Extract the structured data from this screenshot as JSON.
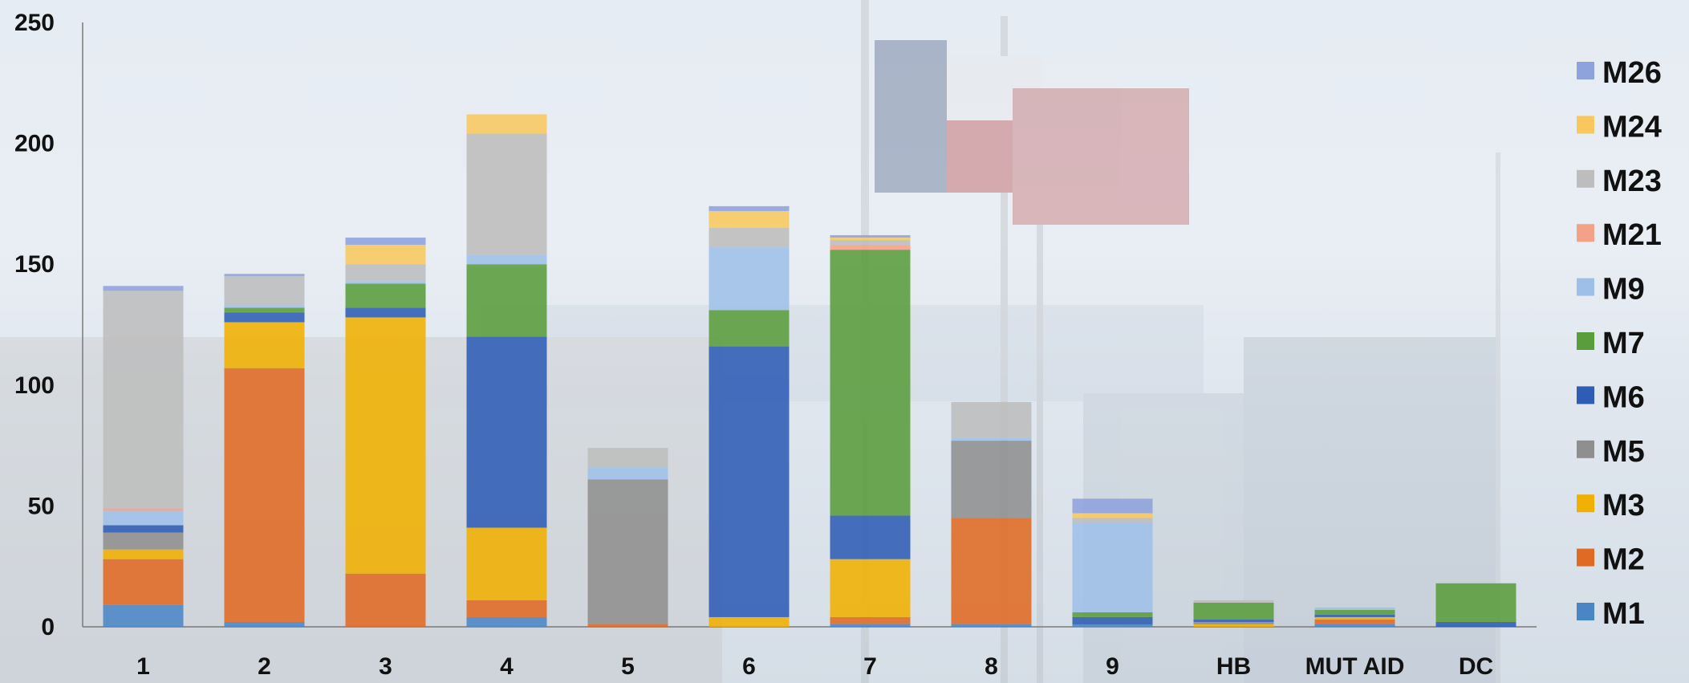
{
  "chart_data": {
    "type": "bar",
    "stacked": true,
    "title": "",
    "xlabel": "",
    "ylabel": "",
    "ylim": [
      0,
      250
    ],
    "yticks": [
      0,
      50,
      100,
      150,
      200,
      250
    ],
    "grid": false,
    "legend_position": "right",
    "categories": [
      "1",
      "2",
      "3",
      "4",
      "5",
      "6",
      "7",
      "8",
      "9",
      "HB",
      "MUT AID",
      "DC"
    ],
    "series": [
      {
        "name": "M1",
        "color": "#4a86c5",
        "values": [
          9,
          2,
          0,
          4,
          0,
          0,
          1,
          1,
          1,
          0,
          1,
          0
        ]
      },
      {
        "name": "M2",
        "color": "#e06a23",
        "values": [
          19,
          105,
          22,
          7,
          1,
          0,
          3,
          44,
          0,
          0,
          2,
          0
        ]
      },
      {
        "name": "M3",
        "color": "#f0b000",
        "values": [
          4,
          19,
          106,
          30,
          0,
          4,
          24,
          0,
          0,
          1,
          1,
          0
        ]
      },
      {
        "name": "M5",
        "color": "#8f8f8f",
        "values": [
          7,
          0,
          0,
          0,
          60,
          0,
          0,
          32,
          0,
          1,
          0,
          0
        ]
      },
      {
        "name": "M6",
        "color": "#2f5cb5",
        "values": [
          3,
          4,
          4,
          79,
          0,
          112,
          18,
          0,
          3,
          1,
          1,
          2
        ]
      },
      {
        "name": "M7",
        "color": "#5a9d3c",
        "values": [
          0,
          2,
          10,
          30,
          0,
          15,
          110,
          0,
          2,
          7,
          2,
          16
        ]
      },
      {
        "name": "M9",
        "color": "#9ec0e8",
        "values": [
          6,
          1,
          1,
          4,
          5,
          26,
          0,
          1,
          37,
          0,
          1,
          0
        ]
      },
      {
        "name": "M21",
        "color": "#f4a287",
        "values": [
          1,
          0,
          0,
          0,
          0,
          0,
          2,
          0,
          0,
          0,
          0,
          0
        ]
      },
      {
        "name": "M23",
        "color": "#bdbdbd",
        "values": [
          90,
          12,
          7,
          50,
          8,
          8,
          2,
          15,
          2,
          1,
          0,
          0
        ]
      },
      {
        "name": "M24",
        "color": "#f8c85e",
        "values": [
          0,
          0,
          8,
          8,
          0,
          7,
          1,
          0,
          2,
          0,
          0,
          0
        ]
      },
      {
        "name": "M26",
        "color": "#8ea2dc",
        "values": [
          2,
          1,
          3,
          0,
          0,
          2,
          1,
          0,
          6,
          0,
          0,
          0
        ]
      }
    ]
  }
}
